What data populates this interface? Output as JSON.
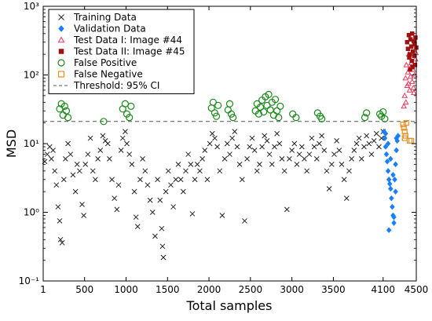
{
  "chart_data": {
    "type": "scatter",
    "title": "",
    "xlabel": "Total samples",
    "ylabel": "MSD",
    "xlim": [
      1,
      4500
    ],
    "ylim": [
      0.1,
      1000
    ],
    "y_scale": "log",
    "x_tick_values": [
      1,
      500,
      1000,
      1500,
      2000,
      2500,
      3000,
      3500,
      4100,
      4500
    ],
    "x_tick_labels": [
      "1",
      "500",
      "1000",
      "1500",
      "2000",
      "2500",
      "3000",
      "3500",
      "4100",
      "4500"
    ],
    "y_tick_values": [
      0.1,
      1,
      10,
      100,
      1000
    ],
    "y_tick_labels": [
      "10⁻¹",
      "10⁰",
      "10¹",
      "10²",
      "10³"
    ],
    "grid": false,
    "legend_position": "top-left",
    "threshold": {
      "name": "Threshold: 95% CI",
      "value": 21,
      "color": "#555555"
    },
    "series": [
      {
        "name": "Training Data",
        "marker": "x",
        "color": "#222222",
        "points": [
          [
            20,
            5.5
          ],
          [
            50,
            7
          ],
          [
            80,
            9
          ],
          [
            100,
            6
          ],
          [
            120,
            8
          ],
          [
            140,
            4
          ],
          [
            160,
            2.5
          ],
          [
            180,
            1.2
          ],
          [
            200,
            0.75
          ],
          [
            210,
            0.4
          ],
          [
            230,
            0.36
          ],
          [
            250,
            3
          ],
          [
            270,
            6
          ],
          [
            300,
            10
          ],
          [
            330,
            7
          ],
          [
            360,
            3.5
          ],
          [
            390,
            2
          ],
          [
            410,
            5
          ],
          [
            440,
            4
          ],
          [
            470,
            1.3
          ],
          [
            490,
            0.9
          ],
          [
            510,
            5
          ],
          [
            540,
            7
          ],
          [
            570,
            12
          ],
          [
            600,
            4
          ],
          [
            630,
            3
          ],
          [
            660,
            6
          ],
          [
            690,
            8
          ],
          [
            720,
            13
          ],
          [
            750,
            11
          ],
          [
            780,
            10
          ],
          [
            800,
            6
          ],
          [
            830,
            3
          ],
          [
            860,
            1.6
          ],
          [
            890,
            1.1
          ],
          [
            910,
            2.5
          ],
          [
            940,
            8
          ],
          [
            960,
            12
          ],
          [
            990,
            15
          ],
          [
            1010,
            10
          ],
          [
            1040,
            7
          ],
          [
            1070,
            5
          ],
          [
            1100,
            2
          ],
          [
            1120,
            0.85
          ],
          [
            1140,
            0.62
          ],
          [
            1170,
            3
          ],
          [
            1200,
            6
          ],
          [
            1230,
            4
          ],
          [
            1260,
            2.5
          ],
          [
            1290,
            1.5
          ],
          [
            1320,
            1.0
          ],
          [
            1350,
            0.45
          ],
          [
            1380,
            3
          ],
          [
            1410,
            1.5
          ],
          [
            1430,
            0.58
          ],
          [
            1440,
            0.32
          ],
          [
            1450,
            0.22
          ],
          [
            1480,
            2
          ],
          [
            1510,
            4
          ],
          [
            1540,
            2.5
          ],
          [
            1570,
            1.2
          ],
          [
            1600,
            3
          ],
          [
            1630,
            5
          ],
          [
            1660,
            3
          ],
          [
            1690,
            2
          ],
          [
            1720,
            4
          ],
          [
            1750,
            7
          ],
          [
            1780,
            5
          ],
          [
            1800,
            0.95
          ],
          [
            1830,
            3
          ],
          [
            1860,
            5
          ],
          [
            1890,
            4
          ],
          [
            1920,
            6
          ],
          [
            1950,
            8
          ],
          [
            1980,
            3
          ],
          [
            2010,
            10
          ],
          [
            2040,
            14
          ],
          [
            2070,
            12
          ],
          [
            2100,
            9
          ],
          [
            2130,
            4
          ],
          [
            2160,
            0.9
          ],
          [
            2190,
            6
          ],
          [
            2220,
            10
          ],
          [
            2250,
            7
          ],
          [
            2280,
            12
          ],
          [
            2310,
            15
          ],
          [
            2340,
            9
          ],
          [
            2370,
            5
          ],
          [
            2400,
            3
          ],
          [
            2430,
            0.75
          ],
          [
            2460,
            6
          ],
          [
            2490,
            9
          ],
          [
            2520,
            12
          ],
          [
            2550,
            8
          ],
          [
            2580,
            4
          ],
          [
            2610,
            5
          ],
          [
            2640,
            9
          ],
          [
            2670,
            13
          ],
          [
            2700,
            11
          ],
          [
            2730,
            7
          ],
          [
            2760,
            5
          ],
          [
            2790,
            9
          ],
          [
            2820,
            14
          ],
          [
            2850,
            10
          ],
          [
            2880,
            6
          ],
          [
            2910,
            4
          ],
          [
            2940,
            1.1
          ],
          [
            2970,
            6
          ],
          [
            3000,
            8
          ],
          [
            3030,
            10
          ],
          [
            3060,
            5
          ],
          [
            3090,
            7
          ],
          [
            3120,
            9
          ],
          [
            3150,
            6
          ],
          [
            3180,
            4
          ],
          [
            3210,
            7
          ],
          [
            3240,
            12
          ],
          [
            3270,
            9
          ],
          [
            3300,
            6
          ],
          [
            3330,
            10
          ],
          [
            3360,
            13
          ],
          [
            3390,
            8
          ],
          [
            3420,
            4
          ],
          [
            3450,
            2.2
          ],
          [
            3480,
            5
          ],
          [
            3510,
            7
          ],
          [
            3540,
            11
          ],
          [
            3570,
            8
          ],
          [
            3600,
            5
          ],
          [
            3630,
            3
          ],
          [
            3660,
            1.6
          ],
          [
            3690,
            4
          ],
          [
            3720,
            6
          ],
          [
            3750,
            8
          ],
          [
            3780,
            10
          ],
          [
            3810,
            12
          ],
          [
            3840,
            6
          ],
          [
            3870,
            9
          ],
          [
            3900,
            13
          ],
          [
            3930,
            10
          ],
          [
            3960,
            7
          ],
          [
            3990,
            11
          ],
          [
            4020,
            14
          ],
          [
            4050,
            9
          ],
          [
            4080,
            12
          ],
          [
            4100,
            15
          ]
        ]
      },
      {
        "name": "Validation Data",
        "marker": "diamond",
        "color": "#1a7fff",
        "points": [
          [
            4110,
            15
          ],
          [
            4120,
            12
          ],
          [
            4130,
            9
          ],
          [
            4140,
            7
          ],
          [
            4150,
            5.5
          ],
          [
            4160,
            4
          ],
          [
            4170,
            3
          ],
          [
            4180,
            2.6
          ],
          [
            4190,
            2.2
          ],
          [
            4200,
            1.6
          ],
          [
            4210,
            1.2
          ],
          [
            4220,
            0.9
          ],
          [
            4170,
            0.55
          ],
          [
            4230,
            0.7
          ],
          [
            4240,
            3
          ],
          [
            4250,
            5
          ],
          [
            4260,
            8
          ],
          [
            4270,
            11
          ],
          [
            4280,
            13
          ],
          [
            4130,
            14
          ],
          [
            4160,
            10
          ],
          [
            4190,
            6
          ],
          [
            4220,
            3.5
          ],
          [
            4250,
            2
          ],
          [
            4230,
            0.85
          ],
          [
            4260,
            12
          ]
        ]
      },
      {
        "name": "Test Data I: Image #44",
        "marker": "triangle",
        "color": "#e8375a",
        "points": [
          [
            4360,
            50
          ],
          [
            4370,
            90
          ],
          [
            4380,
            140
          ],
          [
            4390,
            70
          ],
          [
            4400,
            110
          ],
          [
            4410,
            200
          ],
          [
            4420,
            60
          ],
          [
            4430,
            95
          ],
          [
            4440,
            150
          ],
          [
            4450,
            80
          ],
          [
            4460,
            120
          ],
          [
            4470,
            55
          ],
          [
            4480,
            100
          ],
          [
            4490,
            170
          ],
          [
            4375,
            40
          ],
          [
            4405,
            75
          ],
          [
            4435,
            130
          ],
          [
            4465,
            65
          ],
          [
            4495,
            210
          ],
          [
            4350,
            35
          ]
        ]
      },
      {
        "name": "Test Data II: Image #45",
        "marker": "square",
        "color": "#a01010",
        "points": [
          [
            4390,
            300
          ],
          [
            4400,
            240
          ],
          [
            4410,
            380
          ],
          [
            4420,
            200
          ],
          [
            4430,
            330
          ],
          [
            4440,
            260
          ],
          [
            4450,
            400
          ],
          [
            4460,
            220
          ],
          [
            4470,
            310
          ],
          [
            4480,
            280
          ],
          [
            4490,
            350
          ],
          [
            4500,
            250
          ],
          [
            4415,
            180
          ],
          [
            4445,
            160
          ],
          [
            4475,
            190
          ],
          [
            4455,
            130
          ],
          [
            4425,
            120
          ],
          [
            4485,
            140
          ]
        ]
      },
      {
        "name": "False Positive",
        "marker": "circle",
        "color": "#1a8a1a",
        "points": [
          [
            200,
            32
          ],
          [
            220,
            38
          ],
          [
            240,
            26
          ],
          [
            260,
            35
          ],
          [
            280,
            30
          ],
          [
            300,
            24
          ],
          [
            730,
            21
          ],
          [
            960,
            32
          ],
          [
            990,
            38
          ],
          [
            1010,
            27
          ],
          [
            1040,
            24
          ],
          [
            1060,
            35
          ],
          [
            2030,
            33
          ],
          [
            2050,
            40
          ],
          [
            2070,
            28
          ],
          [
            2090,
            25
          ],
          [
            2110,
            36
          ],
          [
            2230,
            31
          ],
          [
            2250,
            38
          ],
          [
            2270,
            27
          ],
          [
            2290,
            24
          ],
          [
            2560,
            30
          ],
          [
            2580,
            38
          ],
          [
            2600,
            27
          ],
          [
            2620,
            34
          ],
          [
            2640,
            43
          ],
          [
            2660,
            29
          ],
          [
            2680,
            48
          ],
          [
            2700,
            36
          ],
          [
            2720,
            52
          ],
          [
            2740,
            31
          ],
          [
            2760,
            40
          ],
          [
            2780,
            26
          ],
          [
            2800,
            44
          ],
          [
            2820,
            30
          ],
          [
            2840,
            24
          ],
          [
            2860,
            35
          ],
          [
            3010,
            27
          ],
          [
            3050,
            24
          ],
          [
            3310,
            28
          ],
          [
            3340,
            25
          ],
          [
            3360,
            23
          ],
          [
            3880,
            24
          ],
          [
            3900,
            28
          ],
          [
            4060,
            27
          ],
          [
            4080,
            25
          ],
          [
            4100,
            29
          ],
          [
            4120,
            23
          ]
        ]
      },
      {
        "name": "False Negative",
        "marker": "square-open",
        "color": "#e89020",
        "points": [
          [
            4340,
            19
          ],
          [
            4350,
            17
          ],
          [
            4360,
            15
          ],
          [
            4370,
            13
          ],
          [
            4420,
            11
          ],
          [
            4440,
            11
          ],
          [
            4360,
            12
          ],
          [
            4380,
            20
          ]
        ]
      }
    ]
  }
}
